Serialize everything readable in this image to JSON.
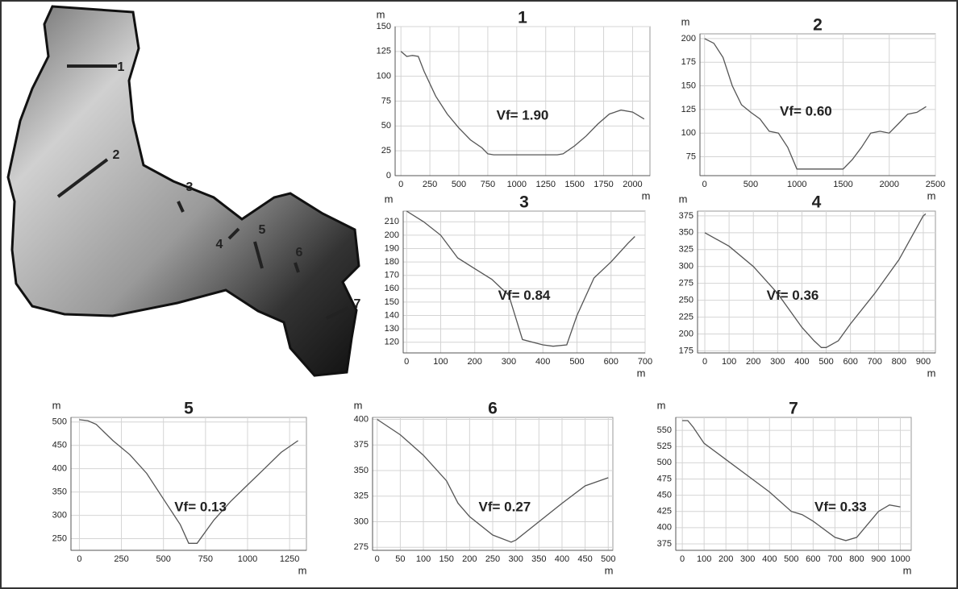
{
  "map": {
    "labels": [
      "1",
      "2",
      "3",
      "4",
      "5",
      "6",
      "7"
    ]
  },
  "chart_data": [
    {
      "type": "line",
      "title": "1",
      "y_label": "m",
      "x_label": "m",
      "annotation": "Vf= 1.90",
      "xlim": [
        -50,
        2150
      ],
      "ylim": [
        0,
        150
      ],
      "xticks": [
        0,
        250,
        500,
        750,
        1000,
        1250,
        1500,
        1750,
        2000
      ],
      "yticks": [
        0,
        25,
        50,
        75,
        100,
        125,
        150
      ],
      "grid": true,
      "x": [
        0,
        50,
        100,
        150,
        200,
        300,
        400,
        500,
        600,
        700,
        750,
        800,
        1000,
        1200,
        1350,
        1400,
        1500,
        1600,
        1700,
        1800,
        1900,
        2000,
        2100
      ],
      "values": [
        125,
        120,
        121,
        120,
        105,
        80,
        62,
        48,
        36,
        28,
        22,
        21,
        21,
        21,
        21,
        22,
        30,
        40,
        52,
        62,
        66,
        64,
        57
      ],
      "color": "#555555"
    },
    {
      "type": "line",
      "title": "2",
      "y_label": "m",
      "x_label": "m",
      "annotation": "Vf= 0.60",
      "xlim": [
        -50,
        2500
      ],
      "ylim": [
        55,
        205
      ],
      "xticks": [
        0,
        500,
        1000,
        1500,
        2000,
        2500
      ],
      "yticks": [
        75,
        100,
        125,
        150,
        175,
        200
      ],
      "grid": true,
      "x": [
        0,
        100,
        200,
        300,
        400,
        500,
        600,
        700,
        800,
        900,
        1000,
        1200,
        1500,
        1600,
        1700,
        1800,
        1900,
        2000,
        2100,
        2200,
        2300,
        2400
      ],
      "values": [
        200,
        195,
        180,
        150,
        130,
        122,
        115,
        102,
        100,
        85,
        62,
        62,
        62,
        72,
        85,
        100,
        102,
        100,
        110,
        120,
        122,
        128
      ],
      "color": "#555555"
    },
    {
      "type": "line",
      "title": "3",
      "y_label": "m",
      "x_label": "m",
      "annotation": "Vf= 0.84",
      "xlim": [
        -10,
        700
      ],
      "ylim": [
        112,
        218
      ],
      "xticks": [
        0,
        100,
        200,
        300,
        400,
        500,
        600,
        700
      ],
      "yticks": [
        120,
        130,
        140,
        150,
        160,
        170,
        180,
        190,
        200,
        210
      ],
      "grid": true,
      "x": [
        0,
        50,
        100,
        150,
        200,
        250,
        300,
        340,
        400,
        430,
        470,
        500,
        550,
        600,
        650,
        670
      ],
      "values": [
        218,
        210,
        200,
        183,
        175,
        167,
        155,
        122,
        118,
        117,
        118,
        140,
        168,
        180,
        194,
        199
      ],
      "color": "#555555"
    },
    {
      "type": "line",
      "title": "4",
      "y_label": "m",
      "x_label": "m",
      "annotation": "Vf= 0.36",
      "xlim": [
        -30,
        950
      ],
      "ylim": [
        172,
        382
      ],
      "xticks": [
        0,
        100,
        200,
        300,
        400,
        500,
        600,
        700,
        800,
        900
      ],
      "yticks": [
        175,
        200,
        225,
        250,
        275,
        300,
        325,
        350,
        375
      ],
      "grid": true,
      "x": [
        0,
        100,
        200,
        300,
        400,
        450,
        480,
        500,
        550,
        600,
        700,
        800,
        900,
        910
      ],
      "values": [
        350,
        330,
        300,
        260,
        210,
        190,
        180,
        180,
        190,
        215,
        260,
        310,
        375,
        378
      ],
      "color": "#555555"
    },
    {
      "type": "line",
      "title": "5",
      "y_label": "m",
      "x_label": "m",
      "annotation": "Vf= 0.13",
      "xlim": [
        -50,
        1350
      ],
      "ylim": [
        225,
        510
      ],
      "xticks": [
        0,
        250,
        500,
        750,
        1000,
        1250
      ],
      "yticks": [
        250,
        300,
        350,
        400,
        450,
        500
      ],
      "grid": true,
      "x": [
        0,
        50,
        100,
        200,
        300,
        400,
        500,
        600,
        650,
        700,
        750,
        800,
        900,
        1000,
        1100,
        1200,
        1300
      ],
      "values": [
        505,
        503,
        495,
        460,
        430,
        390,
        335,
        280,
        240,
        240,
        265,
        290,
        330,
        365,
        400,
        435,
        460
      ],
      "color": "#555555"
    },
    {
      "type": "line",
      "title": "6",
      "y_label": "m",
      "x_label": "m",
      "annotation": "Vf= 0.27",
      "xlim": [
        -10,
        510
      ],
      "ylim": [
        272,
        402
      ],
      "xticks": [
        0,
        50,
        100,
        150,
        200,
        250,
        300,
        350,
        400,
        450,
        500
      ],
      "yticks": [
        275,
        300,
        325,
        350,
        375,
        400
      ],
      "grid": true,
      "x": [
        0,
        50,
        100,
        150,
        175,
        200,
        250,
        290,
        300,
        350,
        400,
        450,
        500
      ],
      "values": [
        400,
        385,
        365,
        340,
        318,
        305,
        287,
        280,
        282,
        300,
        318,
        335,
        343
      ],
      "color": "#555555"
    },
    {
      "type": "line",
      "title": "7",
      "y_label": "m",
      "x_label": "m",
      "annotation": "Vf= 0.33",
      "xlim": [
        -30,
        1050
      ],
      "ylim": [
        365,
        570
      ],
      "xticks": [
        0,
        100,
        200,
        300,
        400,
        500,
        600,
        700,
        800,
        900,
        1000
      ],
      "yticks": [
        375,
        400,
        425,
        450,
        475,
        500,
        525,
        550
      ],
      "grid": true,
      "x": [
        0,
        25,
        50,
        100,
        200,
        300,
        400,
        500,
        550,
        600,
        700,
        750,
        800,
        900,
        950,
        1000
      ],
      "values": [
        565,
        565,
        555,
        530,
        505,
        480,
        455,
        425,
        420,
        410,
        385,
        380,
        385,
        425,
        435,
        432
      ],
      "color": "#555555"
    }
  ]
}
